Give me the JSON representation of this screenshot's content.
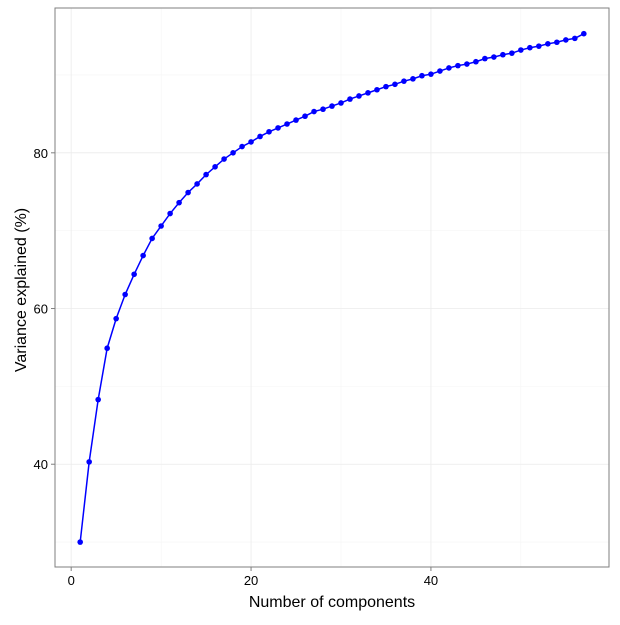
{
  "chart_data": {
    "type": "line",
    "x_label": "Number of components",
    "y_label": "Variance explained (%)",
    "x": [
      1,
      2,
      3,
      4,
      5,
      6,
      7,
      8,
      9,
      10,
      11,
      12,
      13,
      14,
      15,
      16,
      17,
      18,
      19,
      20,
      21,
      22,
      23,
      24,
      25,
      26,
      27,
      28,
      29,
      30,
      31,
      32,
      33,
      34,
      35,
      36,
      37,
      38,
      39,
      40,
      41,
      42,
      43,
      44,
      45,
      46,
      47,
      48,
      49,
      50,
      51,
      52,
      53,
      54,
      55,
      56,
      57
    ],
    "series": [
      {
        "color": "#0000ff",
        "values": [
          30.0,
          40.3,
          48.3,
          54.9,
          58.7,
          61.8,
          64.4,
          66.8,
          69.0,
          70.6,
          72.2,
          73.6,
          74.9,
          76.0,
          77.2,
          78.2,
          79.2,
          80.0,
          80.8,
          81.4,
          82.1,
          82.7,
          83.2,
          83.7,
          84.2,
          84.7,
          85.3,
          85.6,
          86.0,
          86.4,
          86.9,
          87.3,
          87.7,
          88.1,
          88.5,
          88.8,
          89.2,
          89.5,
          89.9,
          90.1,
          90.5,
          90.9,
          91.2,
          91.4,
          91.7,
          92.1,
          92.3,
          92.6,
          92.8,
          93.2,
          93.5,
          93.7,
          94.0,
          94.2,
          94.5,
          94.7,
          95.3
        ]
      }
    ],
    "xlim": [
      -1.8,
      59.8
    ],
    "ylim": [
      26.8,
      98.6
    ],
    "xticks": [
      0,
      20,
      40
    ],
    "yticks": [
      40,
      60,
      80
    ],
    "minor_xgrid": [
      10,
      30,
      50
    ],
    "minor_ygrid": [
      30,
      50,
      70,
      90
    ],
    "grid": true
  }
}
